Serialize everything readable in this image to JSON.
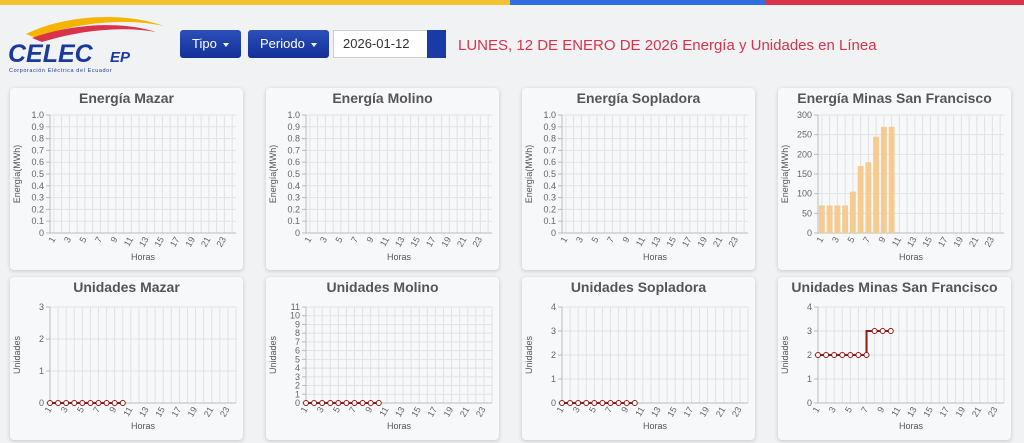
{
  "header": {
    "logo_text": "CELEC",
    "logo_suffix": "EP",
    "logo_subtitle": "Corporación Eléctrica del Ecuador",
    "buttons": [
      "Tipo",
      "Periodo"
    ],
    "date": "2026-01-12",
    "heading": "LUNES, 12 DE ENERO DE 2026 Energía y Unidades en Línea"
  },
  "chart_data": [
    {
      "type": "bar",
      "title": "Energía Mazar",
      "xlabel": "Horas",
      "ylabel": "Energía(MWh)",
      "categories": [
        "1",
        null,
        "3",
        null,
        "5",
        null,
        "7",
        null,
        "9",
        null,
        "11",
        null,
        "13",
        null,
        "15",
        null,
        "17",
        null,
        "19",
        null,
        "21",
        null,
        "23",
        null
      ],
      "ylim": [
        0,
        1
      ],
      "yticks": [
        0,
        0.1,
        0.2,
        0.3,
        0.4,
        0.5,
        0.6,
        0.7,
        0.8,
        0.9,
        {
          "value": 1,
          "label": "1.0"
        }
      ],
      "grid": true
    },
    {
      "type": "bar",
      "title": "Energía Molino",
      "xlabel": "Horas",
      "ylabel": "Energía(MWh)",
      "categories": [
        "1",
        null,
        "3",
        null,
        "5",
        null,
        "7",
        null,
        "9",
        null,
        "11",
        null,
        "13",
        null,
        "15",
        null,
        "17",
        null,
        "19",
        null,
        "21",
        null,
        "23",
        null
      ],
      "ylim": [
        0,
        1
      ],
      "yticks": [
        0,
        0.1,
        0.2,
        0.3,
        0.4,
        0.5,
        0.6,
        0.7,
        0.8,
        0.9,
        {
          "value": 1,
          "label": "1.0"
        }
      ],
      "grid": true
    },
    {
      "type": "bar",
      "title": "Energía Sopladora",
      "xlabel": "Horas",
      "ylabel": "Energía(MWh)",
      "categories": [
        "1",
        null,
        "3",
        null,
        "5",
        null,
        "7",
        null,
        "9",
        null,
        "11",
        null,
        "13",
        null,
        "15",
        null,
        "17",
        null,
        "19",
        null,
        "21",
        null,
        "23",
        null
      ],
      "ylim": [
        0,
        1
      ],
      "yticks": [
        0,
        0.1,
        0.2,
        0.3,
        0.4,
        0.5,
        0.6,
        0.7,
        0.8,
        0.9,
        {
          "value": 1,
          "label": "1.0"
        }
      ],
      "grid": true
    },
    {
      "type": "bar",
      "title": "Energía Minas San Francisco",
      "xlabel": "Horas",
      "ylabel": "Energía(MWh)",
      "categories": [
        "1",
        null,
        "3",
        null,
        "5",
        null,
        "7",
        null,
        "9",
        null,
        "11",
        null,
        "13",
        null,
        "15",
        null,
        "17",
        null,
        "19",
        null,
        "21",
        null,
        "23",
        null
      ],
      "values": [
        70,
        70,
        70,
        70,
        105,
        170,
        180,
        245,
        270,
        270,
        null,
        null,
        null,
        null,
        null,
        null,
        null,
        null,
        null,
        null,
        null,
        null,
        null,
        null
      ],
      "color": "#f5cb91",
      "ylim": [
        0,
        300
      ],
      "yticks": [
        0,
        50,
        100,
        150,
        200,
        250,
        300
      ],
      "grid": true
    },
    {
      "type": "line",
      "title": "Unidades Mazar",
      "xlabel": "Horas",
      "ylabel": "Unidades",
      "categories": [
        "1",
        null,
        "3",
        null,
        "5",
        null,
        "7",
        null,
        "9",
        null,
        "11",
        null,
        "13",
        null,
        "15",
        null,
        "17",
        null,
        "19",
        null,
        "21",
        null,
        "23",
        null
      ],
      "values": [
        0,
        0,
        0,
        0,
        0,
        0,
        0,
        0,
        0,
        0,
        null,
        null,
        null,
        null,
        null,
        null,
        null,
        null,
        null,
        null,
        null,
        null,
        null,
        null
      ],
      "color": "#8b1a1a",
      "stepped": true,
      "ylim": [
        0,
        3
      ],
      "yticks": [
        0,
        1,
        2,
        3
      ],
      "grid": true
    },
    {
      "type": "line",
      "title": "Unidades Molino",
      "xlabel": "Horas",
      "ylabel": "Unidades",
      "categories": [
        "1",
        null,
        "3",
        null,
        "5",
        null,
        "7",
        null,
        "9",
        null,
        "11",
        null,
        "13",
        null,
        "15",
        null,
        "17",
        null,
        "19",
        null,
        "21",
        null,
        "23",
        null
      ],
      "values": [
        0,
        0,
        0,
        0,
        0,
        0,
        0,
        0,
        0,
        0,
        null,
        null,
        null,
        null,
        null,
        null,
        null,
        null,
        null,
        null,
        null,
        null,
        null,
        null
      ],
      "color": "#8b1a1a",
      "stepped": true,
      "ylim": [
        0,
        11
      ],
      "yticks": [
        0,
        1,
        2,
        3,
        4,
        5,
        6,
        7,
        8,
        9,
        10,
        11
      ],
      "grid": true
    },
    {
      "type": "line",
      "title": "Unidades Sopladora",
      "xlabel": "Horas",
      "ylabel": "Unidades",
      "categories": [
        "1",
        null,
        "3",
        null,
        "5",
        null,
        "7",
        null,
        "9",
        null,
        "11",
        null,
        "13",
        null,
        "15",
        null,
        "17",
        null,
        "19",
        null,
        "21",
        null,
        "23",
        null
      ],
      "values": [
        0,
        0,
        0,
        0,
        0,
        0,
        0,
        0,
        0,
        0,
        null,
        null,
        null,
        null,
        null,
        null,
        null,
        null,
        null,
        null,
        null,
        null,
        null,
        null
      ],
      "color": "#8b1a1a",
      "stepped": true,
      "ylim": [
        0,
        4
      ],
      "yticks": [
        0,
        1,
        2,
        3,
        4
      ],
      "grid": true
    },
    {
      "type": "line",
      "title": "Unidades Minas San Francisco",
      "xlabel": "Horas",
      "ylabel": "Unidades",
      "categories": [
        "1",
        null,
        "3",
        null,
        "5",
        null,
        "7",
        null,
        "9",
        null,
        "11",
        null,
        "13",
        null,
        "15",
        null,
        "17",
        null,
        "19",
        null,
        "21",
        null,
        "23",
        null
      ],
      "values": [
        2,
        2,
        2,
        2,
        2,
        2,
        2,
        3,
        3,
        3,
        null,
        null,
        null,
        null,
        null,
        null,
        null,
        null,
        null,
        null,
        null,
        null,
        null,
        null
      ],
      "color": "#8b1a1a",
      "stepped": true,
      "ylim": [
        0,
        4
      ],
      "yticks": [
        0,
        1,
        2,
        3,
        4
      ],
      "grid": true
    }
  ]
}
